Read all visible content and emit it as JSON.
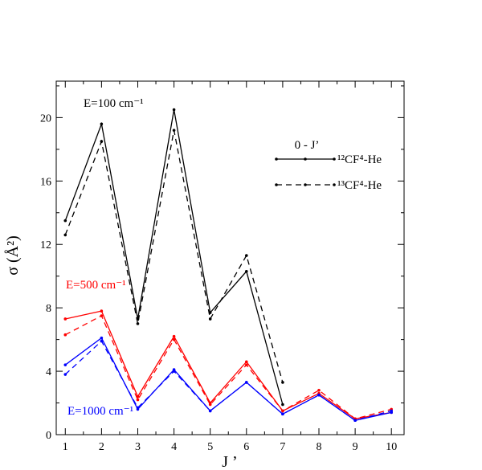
{
  "chart_data": {
    "type": "line",
    "xlabel": "J ’",
    "ylabel": "σ (Å²)",
    "x": [
      1,
      2,
      3,
      4,
      5,
      6,
      7,
      8,
      9,
      10
    ],
    "xlim": [
      0.75,
      10.35
    ],
    "ylim": [
      0,
      22.3
    ],
    "xticks": [
      "1",
      "2",
      "3",
      "4",
      "5",
      "6",
      "7",
      "8",
      "9",
      "10"
    ],
    "yticks": [
      "0",
      "4",
      "8",
      "12",
      "16",
      "20"
    ],
    "grid": false,
    "legend": {
      "title": "0 - J’",
      "position": "top-right",
      "entries": [
        {
          "label": "¹²CF⁴-He",
          "style": "solid"
        },
        {
          "label": "¹³CF⁴-He",
          "style": "dashed"
        }
      ]
    },
    "annotations": [
      {
        "text": "E=100 cm⁻¹",
        "color": "#000000"
      },
      {
        "text": "E=500 cm⁻¹",
        "color": "#ff0000"
      },
      {
        "text": "E=1000 cm⁻¹",
        "color": "#0000ff"
      }
    ],
    "series": [
      {
        "energy": "E=100 cm⁻¹",
        "isotope": "¹²CF⁴-He",
        "color": "#000000",
        "style": "solid",
        "x": [
          1,
          2,
          3,
          4,
          5,
          6,
          7
        ],
        "values": [
          13.5,
          19.6,
          7.3,
          20.5,
          7.7,
          10.3,
          1.9
        ]
      },
      {
        "energy": "E=100 cm⁻¹",
        "isotope": "¹³CF⁴-He",
        "color": "#000000",
        "style": "dashed",
        "x": [
          1,
          2,
          3,
          4,
          5,
          6,
          7
        ],
        "values": [
          12.6,
          18.5,
          7.0,
          19.2,
          7.3,
          11.3,
          3.3
        ]
      },
      {
        "energy": "E=500 cm⁻¹",
        "isotope": "¹²CF⁴-He",
        "color": "#ff0000",
        "style": "solid",
        "x": [
          1,
          2,
          3,
          4,
          5,
          6,
          7,
          8,
          9,
          10
        ],
        "values": [
          7.3,
          7.8,
          2.4,
          6.2,
          2.0,
          4.6,
          1.5,
          2.6,
          1.0,
          1.4
        ]
      },
      {
        "energy": "E=500 cm⁻¹",
        "isotope": "¹³CF⁴-He",
        "color": "#ff0000",
        "style": "dashed",
        "x": [
          1,
          2,
          3,
          4,
          5,
          6,
          7,
          8,
          9,
          10
        ],
        "values": [
          6.3,
          7.5,
          2.2,
          6.0,
          1.9,
          4.4,
          1.5,
          2.8,
          1.0,
          1.6
        ]
      },
      {
        "energy": "E=1000 cm⁻¹",
        "isotope": "¹²CF⁴-He",
        "color": "#0000ff",
        "style": "solid",
        "x": [
          1,
          2,
          3,
          4,
          5,
          6,
          7,
          8,
          9,
          10
        ],
        "values": [
          4.4,
          6.1,
          1.6,
          4.1,
          1.5,
          3.3,
          1.3,
          2.5,
          0.9,
          1.4
        ]
      },
      {
        "energy": "E=1000 cm⁻¹",
        "isotope": "¹³CF⁴-He",
        "color": "#0000ff",
        "style": "dashed",
        "x": [
          1,
          2,
          3,
          4,
          5,
          6,
          7,
          8,
          9,
          10
        ],
        "values": [
          3.8,
          5.9,
          1.7,
          4.0,
          1.5,
          3.3,
          1.3,
          2.5,
          0.9,
          1.5
        ]
      }
    ]
  }
}
